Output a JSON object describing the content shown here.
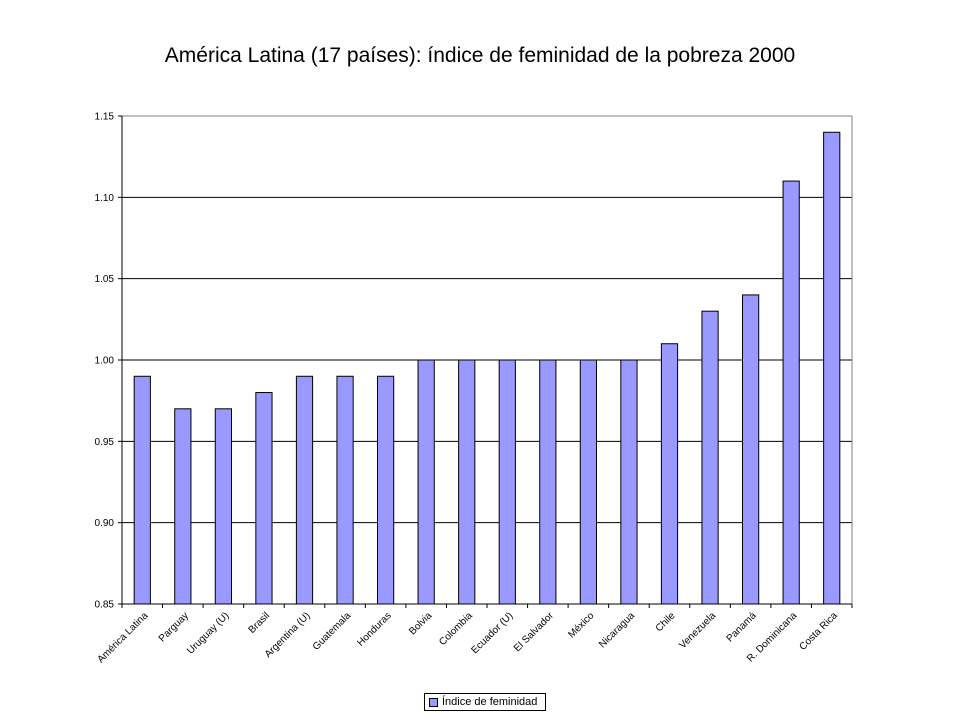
{
  "chart_data": {
    "type": "bar",
    "title": "América Latina (17 países): índice de feminidad de la pobreza 2000",
    "xlabel": "",
    "ylabel": "",
    "ylim": [
      0.85,
      1.15
    ],
    "yticks": [
      "0.85",
      "0.90",
      "0.95",
      "1.00",
      "1.05",
      "1.10",
      "1.15"
    ],
    "grid": true,
    "legend_position": "bottom",
    "bar_color": "#9999ff",
    "categories": [
      "América Latina",
      "Parguay",
      "Uruguay (U)",
      "Brasil",
      "Argentina (U)",
      "Guatemala",
      "Honduras",
      "Bolvia",
      "Colombia",
      "Ecuador (U)",
      "El Salvador",
      "México",
      "Nicaragua",
      "Chile",
      "Venezuela",
      "Panamá",
      "R. Dominicana",
      "Costa Rica"
    ],
    "series": [
      {
        "name": "Índice de feminidad",
        "values": [
          0.99,
          0.97,
          0.97,
          0.98,
          0.99,
          0.99,
          0.99,
          1.0,
          1.0,
          1.0,
          1.0,
          1.0,
          1.0,
          1.01,
          1.03,
          1.04,
          1.11,
          1.14
        ]
      }
    ]
  }
}
